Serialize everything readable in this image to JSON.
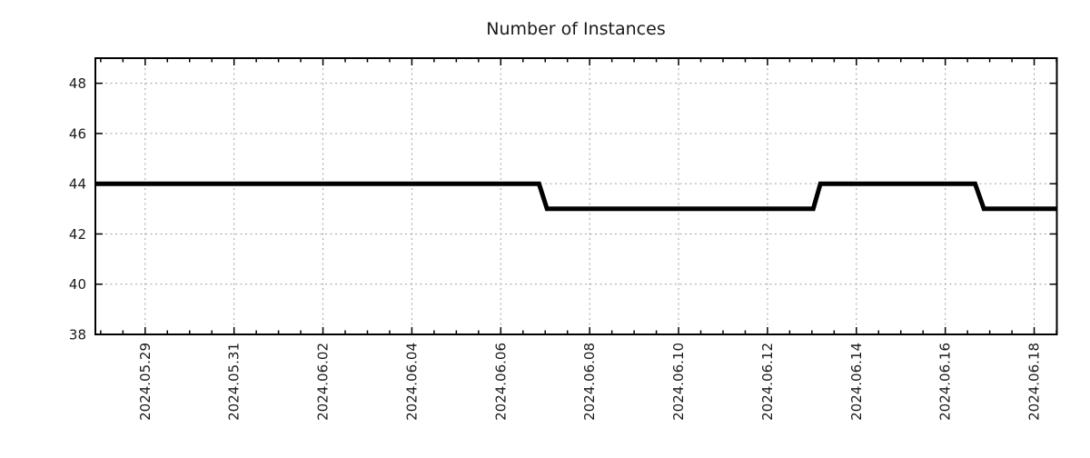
{
  "chart_data": {
    "type": "line",
    "line_style": "step",
    "title": "Number of Instances",
    "xlabel": "",
    "ylabel": "",
    "legend": "none",
    "grid": {
      "major": true,
      "minor": false,
      "style": "dashed",
      "color": "#9f9f9f"
    },
    "ylim": [
      38,
      49
    ],
    "yticks": [
      38,
      40,
      42,
      44,
      46,
      48
    ],
    "xlim_days": [
      -1.12,
      20.51
    ],
    "x_minor_tick_step_days": 0.5,
    "x_ticks": [
      {
        "label": "2024.05.29",
        "day": 0
      },
      {
        "label": "2024.05.31",
        "day": 2
      },
      {
        "label": "2024.06.02",
        "day": 4
      },
      {
        "label": "2024.06.04",
        "day": 6
      },
      {
        "label": "2024.06.06",
        "day": 8
      },
      {
        "label": "2024.06.08",
        "day": 10
      },
      {
        "label": "2024.06.10",
        "day": 12
      },
      {
        "label": "2024.06.12",
        "day": 14
      },
      {
        "label": "2024.06.14",
        "day": 16
      },
      {
        "label": "2024.06.16",
        "day": 18
      },
      {
        "label": "2024.06.18",
        "day": 20
      }
    ],
    "series": [
      {
        "name": "Number of Instances",
        "color": "#000000",
        "stroke_width": 5,
        "points": [
          {
            "day": -1.12,
            "value": 44
          },
          {
            "day": 8.86,
            "value": 44
          },
          {
            "day": 9.04,
            "value": 43
          },
          {
            "day": 15.03,
            "value": 43
          },
          {
            "day": 15.19,
            "value": 44
          },
          {
            "day": 18.67,
            "value": 44
          },
          {
            "day": 18.87,
            "value": 43
          },
          {
            "day": 20.51,
            "value": 43
          }
        ],
        "segments_readable": [
          {
            "value": 44,
            "from": "left edge (~2024-05-27)",
            "to": "2024-06-07"
          },
          {
            "value": 43,
            "from": "2024-06-07",
            "to": "2024-06-13"
          },
          {
            "value": 44,
            "from": "2024-06-13",
            "to": "2024-06-16 ~18:00"
          },
          {
            "value": 43,
            "from": "2024-06-16 ~18:00",
            "to": "right edge (~2024-06-18 12:00)"
          }
        ]
      }
    ],
    "colors": {
      "background": "#ffffff",
      "axis": "#000000",
      "grid": "#9f9f9f",
      "line": "#000000",
      "text": "#1a1a1a"
    }
  }
}
